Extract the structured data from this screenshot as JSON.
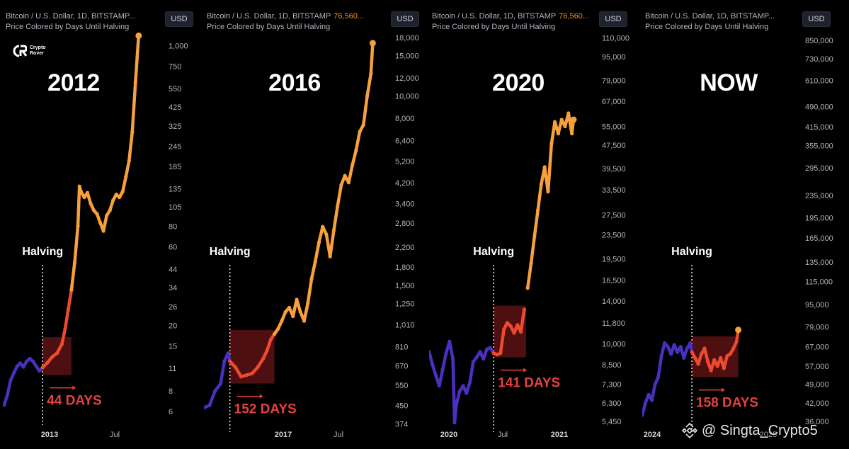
{
  "colors": {
    "background": "#000000",
    "line_purple": "#4b2fbf",
    "line_orange": "#f7a03c",
    "line_red": "#ee4a2f",
    "halving_box": "#5a1212",
    "days_label": "#e5413d"
  },
  "watermark": {
    "icon": "binance-logo-icon",
    "text": "@ Singta_Crypto5"
  },
  "logo": {
    "icon": "crypto-rover-logo-icon",
    "line1": "Crypto",
    "line2": "Rover"
  },
  "panels": [
    {
      "header_line1": "Bitcoin / U.S. Dollar, 1D, BITSTAMP...",
      "header_price": "",
      "header_line2": "Price Colored by Days Until Halving",
      "currency": "USD",
      "big_label": "2012",
      "halving_label": "Halving",
      "days_label": "44 DAYS",
      "x_labels": [
        {
          "text": "2013",
          "bold": true
        },
        {
          "text": "Jul",
          "bold": false
        }
      ]
    },
    {
      "header_line1": "Bitcoin / U.S. Dollar, 1D, BITSTAMP",
      "header_price": "76,560...",
      "header_line2": "Price Colored by Days Until Halving",
      "currency": "USD",
      "big_label": "2016",
      "halving_label": "Halving",
      "days_label": "152 DAYS",
      "x_labels": [
        {
          "text": "2017",
          "bold": true
        },
        {
          "text": "Jul",
          "bold": false
        }
      ]
    },
    {
      "header_line1": "Bitcoin / U.S. Dollar, 1D, BITSTAMP",
      "header_price": "76,560...",
      "header_line2": "Price Colored by Days Until Halving",
      "currency": "USD",
      "big_label": "2020",
      "halving_label": "Halving",
      "days_label": "141 DAYS",
      "x_labels": [
        {
          "text": "2020",
          "bold": true
        },
        {
          "text": "Jul",
          "bold": false
        },
        {
          "text": "2021",
          "bold": true
        }
      ]
    },
    {
      "header_line1": "Bitcoin / U.S. Dollar, 1D, BITSTAMP...",
      "header_price": "",
      "header_line2": "Price Colored by Days Until Halving",
      "currency": "USD",
      "big_label": "NOW",
      "halving_label": "Halving",
      "days_label": "158 DAYS",
      "x_labels": [
        {
          "text": "2024",
          "bold": true
        },
        {
          "text": "2025",
          "bold": false
        }
      ]
    }
  ],
  "chart_data": [
    {
      "type": "line",
      "title": "2012",
      "yscale": "log",
      "ylim": [
        5.5,
        1300
      ],
      "y_ticks": [
        1000,
        750,
        550,
        425,
        325,
        245,
        185,
        135,
        105,
        80,
        60,
        44,
        34,
        26,
        20,
        15,
        11,
        8,
        6
      ],
      "y_tick_labels": [
        "1,000",
        "750",
        "550",
        "425",
        "325",
        "245",
        "185",
        "135",
        "105",
        "80",
        "60",
        "44",
        "34",
        "26",
        "20",
        "15",
        "11",
        "8",
        "6"
      ],
      "halving_x": 0.24,
      "halving_box": {
        "x0": 0.24,
        "x1": 0.42,
        "y_low": 10,
        "y_high": 17
      },
      "series": [
        {
          "points": [
            [
              0,
              6.6
            ],
            [
              0.02,
              7.6
            ],
            [
              0.04,
              9.3
            ],
            [
              0.06,
              10.3
            ],
            [
              0.08,
              11.3
            ],
            [
              0.1,
              11.8
            ],
            [
              0.12,
              11.2
            ],
            [
              0.14,
              12.1
            ],
            [
              0.16,
              12.6
            ],
            [
              0.18,
              12.1
            ],
            [
              0.2,
              11.3
            ],
            [
              0.22,
              10.6
            ],
            [
              0.24,
              11.1
            ],
            [
              0.27,
              11.9
            ],
            [
              0.3,
              12.9
            ],
            [
              0.33,
              13.6
            ],
            [
              0.36,
              15.4
            ],
            [
              0.38,
              19
            ],
            [
              0.4,
              25
            ],
            [
              0.42,
              33
            ],
            [
              0.44,
              48
            ],
            [
              0.46,
              80
            ],
            [
              0.47,
              140
            ],
            [
              0.48,
              130
            ],
            [
              0.5,
              120
            ],
            [
              0.52,
              128
            ],
            [
              0.54,
              110
            ],
            [
              0.56,
              100
            ],
            [
              0.58,
              95
            ],
            [
              0.6,
              84
            ],
            [
              0.62,
              75
            ],
            [
              0.64,
              93
            ],
            [
              0.66,
              100
            ],
            [
              0.68,
              115
            ],
            [
              0.7,
              125
            ],
            [
              0.72,
              120
            ],
            [
              0.74,
              130
            ],
            [
              0.76,
              160
            ],
            [
              0.78,
              200
            ],
            [
              0.8,
              300
            ],
            [
              0.82,
              600
            ],
            [
              0.84,
              1150
            ]
          ],
          "color_segments": [
            {
              "from": 0,
              "to": 0.24,
              "color": "purple"
            },
            {
              "from": 0.24,
              "to": 0.42,
              "color": "red"
            },
            {
              "from": 0.42,
              "to": 0.84,
              "color": "orange"
            }
          ]
        }
      ]
    },
    {
      "type": "line",
      "title": "2016",
      "yscale": "log",
      "ylim": [
        370,
        20000
      ],
      "y_ticks": [
        18000,
        15000,
        12000,
        10000,
        8000,
        6400,
        5200,
        4200,
        3400,
        2800,
        2200,
        1800,
        1500,
        1250,
        1010,
        810,
        670,
        550,
        450,
        374
      ],
      "y_tick_labels": [
        "18,000",
        "15,000",
        "12,000",
        "10,000",
        "8,000",
        "6,400",
        "5,200",
        "4,200",
        "3,400",
        "2,800",
        "2,200",
        "1,800",
        "1,500",
        "1,250",
        "1,010",
        "810",
        "670",
        "550",
        "450",
        "374"
      ],
      "halving_x": 0.14,
      "halving_box": {
        "x0": 0.14,
        "x1": 0.38,
        "y_low": 560,
        "y_high": 960
      },
      "series": [
        {
          "points": [
            [
              0,
              440
            ],
            [
              0.03,
              450
            ],
            [
              0.06,
              520
            ],
            [
              0.09,
              560
            ],
            [
              0.11,
              700
            ],
            [
              0.13,
              760
            ],
            [
              0.14,
              700
            ],
            [
              0.17,
              660
            ],
            [
              0.2,
              600
            ],
            [
              0.23,
              610
            ],
            [
              0.26,
              620
            ],
            [
              0.29,
              660
            ],
            [
              0.32,
              720
            ],
            [
              0.34,
              780
            ],
            [
              0.36,
              870
            ],
            [
              0.38,
              920
            ],
            [
              0.4,
              970
            ],
            [
              0.42,
              1050
            ],
            [
              0.44,
              1150
            ],
            [
              0.46,
              1200
            ],
            [
              0.48,
              1100
            ],
            [
              0.5,
              1300
            ],
            [
              0.52,
              1150
            ],
            [
              0.54,
              1050
            ],
            [
              0.56,
              1250
            ],
            [
              0.58,
              1600
            ],
            [
              0.6,
              1900
            ],
            [
              0.62,
              2300
            ],
            [
              0.64,
              2700
            ],
            [
              0.66,
              2500
            ],
            [
              0.68,
              2000
            ],
            [
              0.7,
              2600
            ],
            [
              0.72,
              3300
            ],
            [
              0.74,
              4100
            ],
            [
              0.76,
              4500
            ],
            [
              0.78,
              4200
            ],
            [
              0.8,
              5000
            ],
            [
              0.82,
              5800
            ],
            [
              0.84,
              7000
            ],
            [
              0.86,
              7500
            ],
            [
              0.88,
              10000
            ],
            [
              0.9,
              12500
            ],
            [
              0.91,
              17000
            ]
          ],
          "color_segments": [
            {
              "from": 0,
              "to": 0.14,
              "color": "purple"
            },
            {
              "from": 0.14,
              "to": 0.38,
              "color": "red"
            },
            {
              "from": 0.38,
              "to": 0.91,
              "color": "orange"
            }
          ]
        }
      ]
    },
    {
      "type": "line",
      "title": "2020",
      "yscale": "log",
      "ylim": [
        5300,
        120000
      ],
      "y_ticks": [
        110000,
        95000,
        79000,
        67000,
        55000,
        47500,
        39500,
        33500,
        27500,
        23500,
        19500,
        16500,
        14000,
        11800,
        10000,
        8500,
        7300,
        6300,
        5450
      ],
      "y_tick_labels": [
        "110,000",
        "95,000",
        "79,000",
        "67,000",
        "55,000",
        "47,500",
        "39,500",
        "33,500",
        "27,500",
        "23,500",
        "19,500",
        "16,500",
        "14,000",
        "11,800",
        "10,000",
        "8,500",
        "7,300",
        "6,300",
        "5,450"
      ],
      "halving_x": 0.38,
      "halving_box": {
        "x0": 0.38,
        "x1": 0.57,
        "y_low": 9000,
        "y_high": 13500
      },
      "series": [
        {
          "points": [
            [
              0,
              9400
            ],
            [
              0.02,
              8500
            ],
            [
              0.04,
              7800
            ],
            [
              0.06,
              7200
            ],
            [
              0.08,
              8200
            ],
            [
              0.1,
              9300
            ],
            [
              0.12,
              10200
            ],
            [
              0.14,
              8900
            ],
            [
              0.15,
              5400
            ],
            [
              0.16,
              6200
            ],
            [
              0.18,
              6900
            ],
            [
              0.2,
              7200
            ],
            [
              0.22,
              6800
            ],
            [
              0.24,
              7400
            ],
            [
              0.26,
              8700
            ],
            [
              0.28,
              9000
            ],
            [
              0.3,
              9400
            ],
            [
              0.32,
              8900
            ],
            [
              0.34,
              9600
            ],
            [
              0.36,
              9700
            ],
            [
              0.38,
              9300
            ],
            [
              0.4,
              9200
            ],
            [
              0.42,
              9300
            ],
            [
              0.44,
              11200
            ],
            [
              0.46,
              11800
            ],
            [
              0.48,
              11500
            ],
            [
              0.5,
              10900
            ],
            [
              0.52,
              11600
            ],
            [
              0.54,
              11000
            ],
            [
              0.56,
              13100
            ],
            [
              0.58,
              15500
            ],
            [
              0.6,
              18800
            ],
            [
              0.62,
              23200
            ],
            [
              0.64,
              28500
            ],
            [
              0.66,
              35000
            ],
            [
              0.68,
              40000
            ],
            [
              0.7,
              33000
            ],
            [
              0.72,
              48000
            ],
            [
              0.74,
              57000
            ],
            [
              0.76,
              52000
            ],
            [
              0.78,
              58000
            ],
            [
              0.8,
              55000
            ],
            [
              0.82,
              61000
            ],
            [
              0.84,
              52000
            ],
            [
              0.85,
              58000
            ]
          ],
          "color_segments": [
            {
              "from": 0,
              "to": 0.38,
              "color": "purple"
            },
            {
              "from": 0.38,
              "to": 0.57,
              "color": "red"
            },
            {
              "from": 0.57,
              "to": 0.85,
              "color": "orange"
            }
          ]
        }
      ]
    },
    {
      "type": "line",
      "title": "NOW",
      "yscale": "log",
      "ylim": [
        35000,
        950000
      ],
      "y_ticks": [
        850000,
        730000,
        610000,
        490000,
        415000,
        355000,
        295000,
        235000,
        195000,
        165000,
        135000,
        115000,
        95000,
        79000,
        67000,
        57000,
        49000,
        42000,
        36000
      ],
      "y_tick_labels": [
        "850,000",
        "730,000",
        "610,000",
        "490,000",
        "415,000",
        "355,000",
        "295,000",
        "235,000",
        "195,000",
        "165,000",
        "135,000",
        "115,000",
        "95,000",
        "79,000",
        "67,000",
        "57,000",
        "49,000",
        "42,000",
        "36,000"
      ],
      "halving_x": 0.31,
      "halving_box": {
        "x0": 0.31,
        "x1": 0.6,
        "y_low": 52000,
        "y_high": 73000
      },
      "series": [
        {
          "points": [
            [
              0,
              38000
            ],
            [
              0.02,
              42000
            ],
            [
              0.04,
              45000
            ],
            [
              0.06,
              43000
            ],
            [
              0.08,
              49000
            ],
            [
              0.1,
              52000
            ],
            [
              0.12,
              62000
            ],
            [
              0.14,
              69000
            ],
            [
              0.16,
              67000
            ],
            [
              0.18,
              63000
            ],
            [
              0.2,
              68000
            ],
            [
              0.22,
              64000
            ],
            [
              0.24,
              67000
            ],
            [
              0.26,
              61000
            ],
            [
              0.28,
              66000
            ],
            [
              0.3,
              69000
            ],
            [
              0.31,
              64000
            ],
            [
              0.33,
              61000
            ],
            [
              0.35,
              58000
            ],
            [
              0.37,
              63000
            ],
            [
              0.39,
              66000
            ],
            [
              0.41,
              59000
            ],
            [
              0.43,
              55000
            ],
            [
              0.45,
              60000
            ],
            [
              0.47,
              57000
            ],
            [
              0.49,
              61000
            ],
            [
              0.51,
              56000
            ],
            [
              0.53,
              62000
            ],
            [
              0.55,
              63000
            ],
            [
              0.57,
              66000
            ],
            [
              0.59,
              70000
            ],
            [
              0.6,
              77000
            ]
          ],
          "color_segments": [
            {
              "from": 0,
              "to": 0.31,
              "color": "purple"
            },
            {
              "from": 0.31,
              "to": 0.6,
              "color": "red"
            }
          ]
        }
      ]
    }
  ]
}
